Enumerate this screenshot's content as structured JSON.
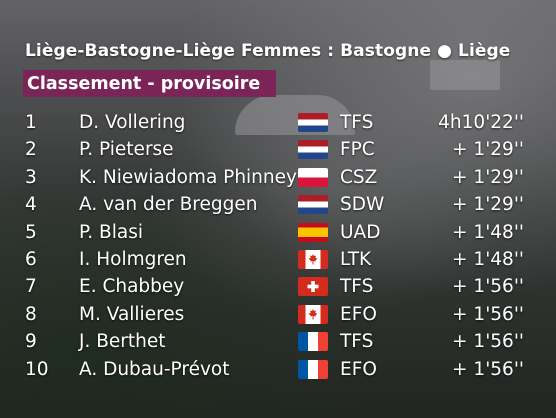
{
  "header": {
    "title_left": "Liège-Bastogne-Liège Femmes : Bastogne",
    "bullet": "●",
    "title_right": "Liège",
    "subtitle": "Classement - provisoire"
  },
  "rows": [
    {
      "rank": "1",
      "name": "D. Vollering",
      "flag": "nl",
      "team": "TFS",
      "time": "4h10'22''"
    },
    {
      "rank": "2",
      "name": "P. Pieterse",
      "flag": "nl",
      "team": "FPC",
      "time": "+ 1'29''"
    },
    {
      "rank": "3",
      "name": "K. Niewiadoma Phinney",
      "flag": "pl",
      "team": "CSZ",
      "time": "+ 1'29''"
    },
    {
      "rank": "4",
      "name": "A. van der Breggen",
      "flag": "nl",
      "team": "SDW",
      "time": "+ 1'29''"
    },
    {
      "rank": "5",
      "name": "P. Blasi",
      "flag": "es",
      "team": "UAD",
      "time": "+ 1'48''"
    },
    {
      "rank": "6",
      "name": "I. Holmgren",
      "flag": "ca",
      "team": "LTK",
      "time": "+ 1'48''"
    },
    {
      "rank": "7",
      "name": "E. Chabbey",
      "flag": "ch",
      "team": "TFS",
      "time": "+ 1'56''"
    },
    {
      "rank": "8",
      "name": "M. Vallieres",
      "flag": "ca",
      "team": "EFO",
      "time": "+ 1'56''"
    },
    {
      "rank": "9",
      "name": "J. Berthet",
      "flag": "fr",
      "team": "TFS",
      "time": "+ 1'56''"
    },
    {
      "rank": "10",
      "name": "A. Dubau-Prévot",
      "flag": "fr",
      "team": "EFO",
      "time": "+ 1'56''"
    }
  ]
}
